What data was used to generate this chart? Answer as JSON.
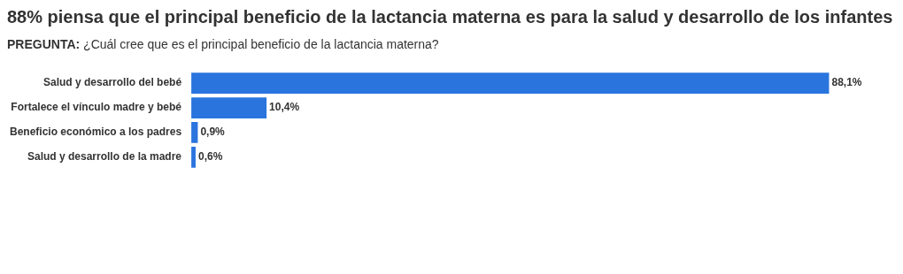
{
  "chart_data": {
    "type": "bar",
    "orientation": "horizontal",
    "title": "88% piensa que el principal beneficio de la lactancia materna es para la salud y desarrollo de los infantes",
    "subtitle": "PREGUNTA: ¿Cuál cree que es el principal beneficio de la lactancia materna?",
    "categories": [
      "Salud y desarrollo del bebé",
      "Fortalece el vínculo madre y bebé",
      "Beneficio económico a los padres",
      "Salud y desarrollo de la madre"
    ],
    "values": [
      88.1,
      10.4,
      0.9,
      0.6
    ],
    "value_labels": [
      "88,1%",
      "10,4%",
      "0,9%",
      "0,6%"
    ],
    "color": "#2a74de"
  }
}
